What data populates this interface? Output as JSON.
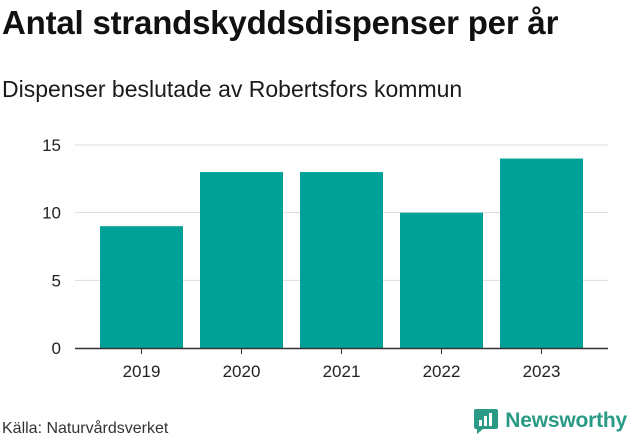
{
  "title": "Antal strandskyddsdispenser per år",
  "subtitle": "Dispenser beslutade av Robertsfors kommun",
  "source": "Källa: Naturvårdsverket",
  "brand": "Newsworthy",
  "colors": {
    "bar": "#00a196",
    "grid": "#dddddd",
    "axis": "#333333",
    "brand": "#2a9a86"
  },
  "chart_data": {
    "type": "bar",
    "title": "Antal strandskyddsdispenser per år",
    "subtitle": "Dispenser beslutade av Robertsfors kommun",
    "categories": [
      "2019",
      "2020",
      "2021",
      "2022",
      "2023"
    ],
    "values": [
      9,
      13,
      13,
      10,
      14
    ],
    "ylim": [
      0,
      15
    ],
    "yticks": [
      "0",
      "5",
      "10",
      "15"
    ],
    "xlabel": "",
    "ylabel": "",
    "grid": true
  }
}
